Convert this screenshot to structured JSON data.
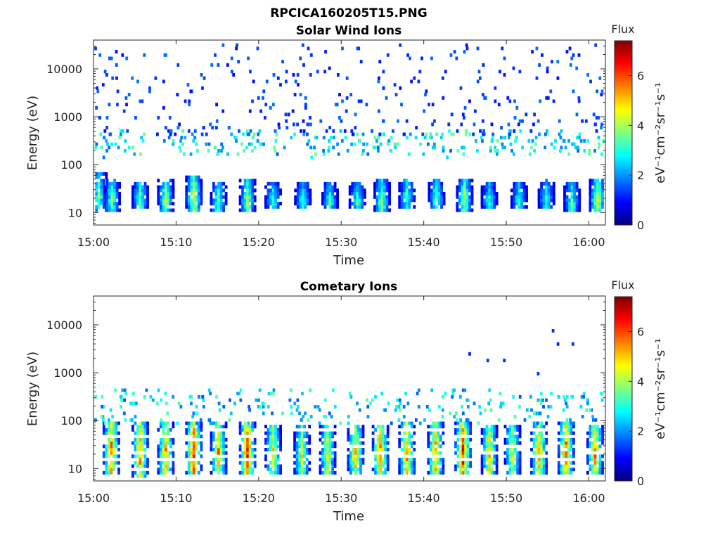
{
  "figure": {
    "title": "RPCICA160205T15.PNG"
  },
  "chart_data": [
    {
      "type": "heatmap",
      "title": "Solar Wind Ions",
      "xlabel": "Time",
      "ylabel": "Energy (eV)",
      "y_scale": "log",
      "ylim": [
        5.5,
        40000
      ],
      "x_ticks": [
        "15:00",
        "15:10",
        "15:20",
        "15:30",
        "15:40",
        "15:50",
        "16:00"
      ],
      "x_range_minutes": [
        0,
        62
      ],
      "y_ticks": [
        10,
        100,
        1000,
        10000
      ],
      "y_tick_labels": [
        "10",
        "100",
        "1000",
        "10000"
      ],
      "colorbar": {
        "title": "Flux",
        "label": "eV⁻¹cm⁻²sr⁻¹s⁻¹",
        "range": [
          0,
          7.4
        ],
        "ticks": [
          0,
          2,
          4,
          6
        ],
        "colormap": "jet"
      },
      "bursts": [
        {
          "t": 0.5,
          "lo": 12,
          "hi": 60,
          "peak": 3.8
        },
        {
          "t": 2.1,
          "lo": 12,
          "hi": 45,
          "peak": 4.0
        },
        {
          "t": 5.5,
          "lo": 14,
          "hi": 40,
          "peak": 4.2
        },
        {
          "t": 8.6,
          "lo": 12,
          "hi": 45,
          "peak": 4.3
        },
        {
          "t": 12.0,
          "lo": 12,
          "hi": 55,
          "peak": 4.9
        },
        {
          "t": 15.0,
          "lo": 12,
          "hi": 40,
          "peak": 4.0
        },
        {
          "t": 18.5,
          "lo": 12,
          "hi": 45,
          "peak": 4.2
        },
        {
          "t": 21.6,
          "lo": 14,
          "hi": 40,
          "peak": 3.6
        },
        {
          "t": 25.2,
          "lo": 14,
          "hi": 40,
          "peak": 3.6
        },
        {
          "t": 28.5,
          "lo": 14,
          "hi": 38,
          "peak": 3.5
        },
        {
          "t": 31.8,
          "lo": 14,
          "hi": 40,
          "peak": 3.7
        },
        {
          "t": 34.8,
          "lo": 12,
          "hi": 45,
          "peak": 4.1
        },
        {
          "t": 37.8,
          "lo": 14,
          "hi": 45,
          "peak": 3.8
        },
        {
          "t": 41.4,
          "lo": 14,
          "hi": 45,
          "peak": 3.9
        },
        {
          "t": 44.8,
          "lo": 12,
          "hi": 45,
          "peak": 4.6
        },
        {
          "t": 47.8,
          "lo": 14,
          "hi": 38,
          "peak": 3.4
        },
        {
          "t": 51.4,
          "lo": 14,
          "hi": 40,
          "peak": 3.5
        },
        {
          "t": 54.7,
          "lo": 14,
          "hi": 45,
          "peak": 3.6
        },
        {
          "t": 57.8,
          "lo": 12,
          "hi": 40,
          "peak": 3.8
        },
        {
          "t": 60.9,
          "lo": 12,
          "hi": 45,
          "peak": 4.9
        }
      ],
      "mid_band": {
        "lo": 150,
        "hi": 500,
        "peak": 3.5
      },
      "sparse_band": {
        "lo": 400,
        "hi": 32000,
        "peak": 1.8
      }
    },
    {
      "type": "heatmap",
      "title": "Cometary Ions",
      "xlabel": "Time",
      "ylabel": "Energy (eV)",
      "y_scale": "log",
      "ylim": [
        5.5,
        40000
      ],
      "x_ticks": [
        "15:00",
        "15:10",
        "15:20",
        "15:30",
        "15:40",
        "15:50",
        "16:00"
      ],
      "x_range_minutes": [
        0,
        62
      ],
      "y_ticks": [
        10,
        100,
        1000,
        10000
      ],
      "y_tick_labels": [
        "10",
        "100",
        "1000",
        "10000"
      ],
      "colorbar": {
        "title": "Flux",
        "label": "eV⁻¹cm⁻²sr⁻¹s⁻¹",
        "range": [
          0,
          7.4
        ],
        "ticks": [
          0,
          2,
          4,
          6
        ],
        "colormap": "jet"
      },
      "bursts": [
        {
          "t": 2.0,
          "lo": 8,
          "hi": 90,
          "peak": 6.2
        },
        {
          "t": 5.5,
          "lo": 7,
          "hi": 95,
          "peak": 6.0
        },
        {
          "t": 8.6,
          "lo": 8,
          "hi": 90,
          "peak": 6.0
        },
        {
          "t": 12.0,
          "lo": 8,
          "hi": 95,
          "peak": 6.8
        },
        {
          "t": 15.0,
          "lo": 8,
          "hi": 85,
          "peak": 5.7
        },
        {
          "t": 18.5,
          "lo": 8,
          "hi": 90,
          "peak": 6.7
        },
        {
          "t": 21.6,
          "lo": 8,
          "hi": 80,
          "peak": 5.2
        },
        {
          "t": 25.1,
          "lo": 8,
          "hi": 70,
          "peak": 4.8
        },
        {
          "t": 28.2,
          "lo": 8,
          "hi": 70,
          "peak": 5.0
        },
        {
          "t": 31.6,
          "lo": 8,
          "hi": 75,
          "peak": 5.4
        },
        {
          "t": 34.6,
          "lo": 8,
          "hi": 80,
          "peak": 6.2
        },
        {
          "t": 37.8,
          "lo": 8,
          "hi": 85,
          "peak": 6.0
        },
        {
          "t": 41.3,
          "lo": 8,
          "hi": 85,
          "peak": 5.9
        },
        {
          "t": 44.6,
          "lo": 8,
          "hi": 90,
          "peak": 6.8
        },
        {
          "t": 47.8,
          "lo": 8,
          "hi": 80,
          "peak": 5.5
        },
        {
          "t": 50.6,
          "lo": 8,
          "hi": 75,
          "peak": 5.0
        },
        {
          "t": 53.8,
          "lo": 8,
          "hi": 85,
          "peak": 5.9
        },
        {
          "t": 57.1,
          "lo": 8,
          "hi": 90,
          "peak": 6.3
        },
        {
          "t": 60.6,
          "lo": 8,
          "hi": 80,
          "peak": 5.8
        }
      ],
      "mid_band": {
        "lo": 90,
        "hi": 450,
        "peak": 3.3
      },
      "isolated_points": [
        {
          "t": 45.4,
          "e": 2400,
          "v": 1.2
        },
        {
          "t": 47.6,
          "e": 1700,
          "v": 1.3
        },
        {
          "t": 49.6,
          "e": 1700,
          "v": 1.2
        },
        {
          "t": 53.7,
          "e": 950,
          "v": 1.4
        },
        {
          "t": 55.5,
          "e": 7200,
          "v": 1.3
        },
        {
          "t": 56.1,
          "e": 4200,
          "v": 1.2
        },
        {
          "t": 57.9,
          "e": 4100,
          "v": 1.3
        }
      ]
    }
  ]
}
